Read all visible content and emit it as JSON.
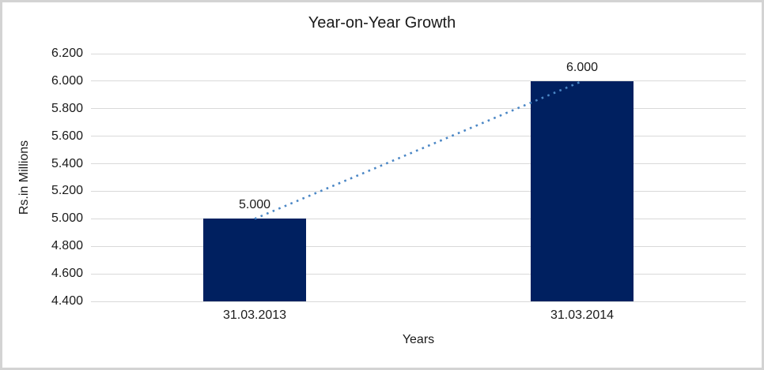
{
  "window": {
    "background_color": "#ffffff",
    "border_color": "#d3d3d3"
  },
  "chart_data": {
    "type": "bar",
    "title": "Year-on-Year Growth",
    "xlabel": "Years",
    "ylabel": "Rs.in Millions",
    "categories": [
      "31.03.2013",
      "31.03.2014"
    ],
    "values": [
      5000,
      6000
    ],
    "value_labels": [
      "5.000",
      "6.000"
    ],
    "ylim": [
      4400,
      6200
    ],
    "y_tick_step": 200,
    "y_tick_labels": [
      "4.400",
      "4.600",
      "4.800",
      "5.000",
      "5.200",
      "5.400",
      "5.600",
      "5.800",
      "6.000",
      "6.200"
    ],
    "grid": "horizontal",
    "legend": "none",
    "colors": {
      "bar": "#002060",
      "gridline": "#d9d9d9",
      "trendline": "#4a86c5",
      "text": "#1a1a1a"
    },
    "trendline": {
      "style": "dotted",
      "from": {
        "category": "31.03.2013",
        "value": 5000
      },
      "to": {
        "category": "31.03.2014",
        "value": 6000
      }
    }
  }
}
